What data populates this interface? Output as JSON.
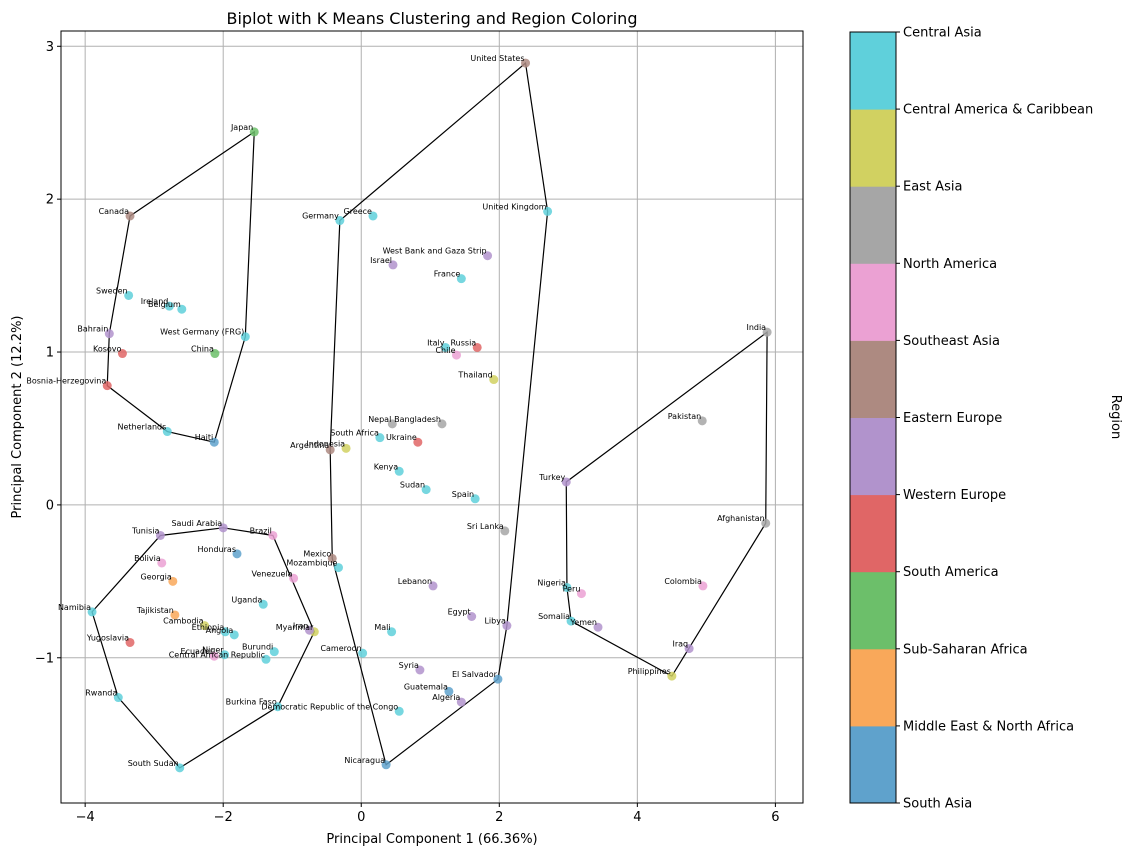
{
  "chart_data": {
    "type": "scatter",
    "title": "Biplot with K Means Clustering and Region Coloring",
    "xlabel": "Principal Component 1 (66.36%)",
    "ylabel": "Principal Component 2 (12.2%)",
    "xlim": [
      -4.35,
      6.4
    ],
    "ylim": [
      -1.95,
      3.1
    ],
    "xticks": [
      -4,
      -2,
      0,
      2,
      4,
      6
    ],
    "yticks": [
      -1,
      0,
      1,
      2,
      3
    ],
    "xtick_labels": [
      "−4",
      "−2",
      "0",
      "2",
      "4",
      "6"
    ],
    "ytick_labels": [
      "−1",
      "0",
      "1",
      "2",
      "3"
    ],
    "grid": true,
    "colorbar": {
      "label": "Region",
      "ticks": [
        "Central Asia",
        "Central America & Caribbean",
        "East Asia",
        "North America",
        "Southeast Asia",
        "Eastern Europe",
        "Western Europe",
        "South America",
        "Sub-Saharan Africa",
        "Middle East & North Africa",
        "South Asia"
      ],
      "colors": [
        "#5fa2cc",
        "#f9a85a",
        "#6cbf6a",
        "#e06666",
        "#b193cc",
        "#ad8a81",
        "#eba1d3",
        "#a6a6a6",
        "#d1d161",
        "#5fd0db"
      ]
    },
    "points": [
      {
        "name": "United States",
        "x": 2.38,
        "y": 2.89,
        "color": "#ad8a81"
      },
      {
        "name": "Japan",
        "x": -1.55,
        "y": 2.44,
        "color": "#6cbf6a"
      },
      {
        "name": "Canada",
        "x": -3.35,
        "y": 1.89,
        "color": "#ad8a81"
      },
      {
        "name": "Germany",
        "x": -0.31,
        "y": 1.86,
        "color": "#5fd0db"
      },
      {
        "name": "Greece",
        "x": 0.17,
        "y": 1.89,
        "color": "#5fd0db"
      },
      {
        "name": "United Kingdom",
        "x": 2.7,
        "y": 1.92,
        "color": "#5fd0db"
      },
      {
        "name": "West Bank and Gaza Strip",
        "x": 1.83,
        "y": 1.63,
        "color": "#b193cc"
      },
      {
        "name": "Israel",
        "x": 0.46,
        "y": 1.57,
        "color": "#b193cc"
      },
      {
        "name": "France",
        "x": 1.45,
        "y": 1.48,
        "color": "#5fd0db"
      },
      {
        "name": "Sweden",
        "x": -3.37,
        "y": 1.37,
        "color": "#5fd0db"
      },
      {
        "name": "Ireland",
        "x": -2.78,
        "y": 1.3,
        "color": "#5fd0db"
      },
      {
        "name": "Belgium",
        "x": -2.6,
        "y": 1.28,
        "color": "#5fd0db"
      },
      {
        "name": "Bahrain",
        "x": -3.65,
        "y": 1.12,
        "color": "#b193cc"
      },
      {
        "name": "West Germany (FRG)",
        "x": -1.68,
        "y": 1.1,
        "color": "#5fd0db"
      },
      {
        "name": "India",
        "x": 5.88,
        "y": 1.13,
        "color": "#a6a6a6"
      },
      {
        "name": "Kosovo",
        "x": -3.46,
        "y": 0.99,
        "color": "#e06666"
      },
      {
        "name": "China",
        "x": -2.12,
        "y": 0.99,
        "color": "#6cbf6a"
      },
      {
        "name": "Italy",
        "x": 1.22,
        "y": 1.03,
        "color": "#5fd0db"
      },
      {
        "name": "Russia",
        "x": 1.68,
        "y": 1.03,
        "color": "#e06666"
      },
      {
        "name": "Chile",
        "x": 1.38,
        "y": 0.98,
        "color": "#eba1d3"
      },
      {
        "name": "Bosnia-Herzegovina",
        "x": -3.68,
        "y": 0.78,
        "color": "#e06666"
      },
      {
        "name": "Thailand",
        "x": 1.92,
        "y": 0.82,
        "color": "#d1d161"
      },
      {
        "name": "Pakistan",
        "x": 4.94,
        "y": 0.55,
        "color": "#a6a6a6"
      },
      {
        "name": "Nepal",
        "x": 0.45,
        "y": 0.53,
        "color": "#a6a6a6"
      },
      {
        "name": "Bangladesh",
        "x": 1.17,
        "y": 0.53,
        "color": "#a6a6a6"
      },
      {
        "name": "Netherlands",
        "x": -2.81,
        "y": 0.48,
        "color": "#5fd0db"
      },
      {
        "name": "Haiti",
        "x": -2.13,
        "y": 0.41,
        "color": "#5fa2cc"
      },
      {
        "name": "South Africa",
        "x": 0.27,
        "y": 0.44,
        "color": "#5fd0db"
      },
      {
        "name": "Ukraine",
        "x": 0.82,
        "y": 0.41,
        "color": "#e06666"
      },
      {
        "name": "Argentina",
        "x": -0.45,
        "y": 0.36,
        "color": "#ad8a81"
      },
      {
        "name": "Indonesia",
        "x": -0.22,
        "y": 0.37,
        "color": "#d1d161"
      },
      {
        "name": "Kenya",
        "x": 0.55,
        "y": 0.22,
        "color": "#5fd0db"
      },
      {
        "name": "Turkey",
        "x": 2.97,
        "y": 0.15,
        "color": "#b193cc"
      },
      {
        "name": "Sudan",
        "x": 0.94,
        "y": 0.1,
        "color": "#5fd0db"
      },
      {
        "name": "Spain",
        "x": 1.65,
        "y": 0.04,
        "color": "#5fd0db"
      },
      {
        "name": "Afghanistan",
        "x": 5.86,
        "y": -0.12,
        "color": "#a6a6a6"
      },
      {
        "name": "Sri Lanka",
        "x": 2.08,
        "y": -0.17,
        "color": "#a6a6a6"
      },
      {
        "name": "Saudi Arabia",
        "x": -2.0,
        "y": -0.15,
        "color": "#b193cc"
      },
      {
        "name": "Tunisia",
        "x": -2.91,
        "y": -0.2,
        "color": "#b193cc"
      },
      {
        "name": "Brazil",
        "x": -1.28,
        "y": -0.2,
        "color": "#eba1d3"
      },
      {
        "name": "Honduras",
        "x": -1.8,
        "y": -0.32,
        "color": "#5fa2cc"
      },
      {
        "name": "Bolivia",
        "x": -2.89,
        "y": -0.38,
        "color": "#eba1d3"
      },
      {
        "name": "Mexico",
        "x": -0.42,
        "y": -0.35,
        "color": "#ad8a81"
      },
      {
        "name": "Mozambique",
        "x": -0.33,
        "y": -0.41,
        "color": "#5fd0db"
      },
      {
        "name": "Venezuela",
        "x": -0.98,
        "y": -0.48,
        "color": "#eba1d3"
      },
      {
        "name": "Georgia",
        "x": -2.73,
        "y": -0.5,
        "color": "#f9a85a"
      },
      {
        "name": "Lebanon",
        "x": 1.04,
        "y": -0.53,
        "color": "#b193cc"
      },
      {
        "name": "Nigeria",
        "x": 2.98,
        "y": -0.54,
        "color": "#5fd0db"
      },
      {
        "name": "Peru",
        "x": 3.19,
        "y": -0.58,
        "color": "#eba1d3"
      },
      {
        "name": "Colombia",
        "x": 4.95,
        "y": -0.53,
        "color": "#eba1d3"
      },
      {
        "name": "Namibia",
        "x": -3.9,
        "y": -0.7,
        "color": "#5fd0db"
      },
      {
        "name": "Tajikistan",
        "x": -2.7,
        "y": -0.72,
        "color": "#f9a85a"
      },
      {
        "name": "Uganda",
        "x": -1.42,
        "y": -0.65,
        "color": "#5fd0db"
      },
      {
        "name": "Egypt",
        "x": 1.6,
        "y": -0.73,
        "color": "#b193cc"
      },
      {
        "name": "Somalia",
        "x": 3.04,
        "y": -0.76,
        "color": "#5fd0db"
      },
      {
        "name": "Libya",
        "x": 2.11,
        "y": -0.79,
        "color": "#b193cc"
      },
      {
        "name": "Yemen",
        "x": 3.43,
        "y": -0.8,
        "color": "#b193cc"
      },
      {
        "name": "Cambodia",
        "x": -2.27,
        "y": -0.79,
        "color": "#d1d161"
      },
      {
        "name": "Ethiopia",
        "x": -1.97,
        "y": -0.83,
        "color": "#5fd0db"
      },
      {
        "name": "Angola",
        "x": -1.84,
        "y": -0.85,
        "color": "#5fd0db"
      },
      {
        "name": "Myanmar",
        "x": -0.68,
        "y": -0.83,
        "color": "#d1d161"
      },
      {
        "name": "Iran",
        "x": -0.75,
        "y": -0.82,
        "color": "#b193cc"
      },
      {
        "name": "Mali",
        "x": 0.44,
        "y": -0.83,
        "color": "#5fd0db"
      },
      {
        "name": "Yugoslavia",
        "x": -3.35,
        "y": -0.9,
        "color": "#e06666"
      },
      {
        "name": "Iraq",
        "x": 4.75,
        "y": -0.94,
        "color": "#b193cc"
      },
      {
        "name": "Burundi",
        "x": -1.26,
        "y": -0.96,
        "color": "#5fd0db"
      },
      {
        "name": "Cameroon",
        "x": 0.02,
        "y": -0.97,
        "color": "#5fd0db"
      },
      {
        "name": "Niger",
        "x": -1.98,
        "y": -0.98,
        "color": "#5fd0db"
      },
      {
        "name": "Ecuador",
        "x": -2.13,
        "y": -0.99,
        "color": "#eba1d3"
      },
      {
        "name": "Central African Republic",
        "x": -1.38,
        "y": -1.01,
        "color": "#5fd0db"
      },
      {
        "name": "Syria",
        "x": 0.85,
        "y": -1.08,
        "color": "#b193cc"
      },
      {
        "name": "El Salvador",
        "x": 1.98,
        "y": -1.14,
        "color": "#5fa2cc"
      },
      {
        "name": "Philippines",
        "x": 4.5,
        "y": -1.12,
        "color": "#d1d161"
      },
      {
        "name": "Guatemala",
        "x": 1.27,
        "y": -1.22,
        "color": "#5fa2cc"
      },
      {
        "name": "Rwanda",
        "x": -3.52,
        "y": -1.26,
        "color": "#5fd0db"
      },
      {
        "name": "Algeria",
        "x": 1.45,
        "y": -1.29,
        "color": "#b193cc"
      },
      {
        "name": "Burkina Faso",
        "x": -1.21,
        "y": -1.32,
        "color": "#5fd0db"
      },
      {
        "name": "Democratic Republic of the Congo",
        "x": 0.55,
        "y": -1.35,
        "color": "#5fd0db"
      },
      {
        "name": "Nicaragua",
        "x": 0.36,
        "y": -1.7,
        "color": "#5fa2cc"
      },
      {
        "name": "South Sudan",
        "x": -2.63,
        "y": -1.72,
        "color": "#5fd0db"
      }
    ],
    "hulls": [
      [
        [
          -1.55,
          2.44
        ],
        [
          -3.35,
          1.89
        ],
        [
          -3.65,
          1.12
        ],
        [
          -3.68,
          0.78
        ],
        [
          -2.81,
          0.48
        ],
        [
          -2.13,
          0.41
        ],
        [
          -1.68,
          1.1
        ]
      ],
      [
        [
          2.38,
          2.89
        ],
        [
          -0.31,
          1.86
        ],
        [
          -0.45,
          0.36
        ],
        [
          -0.42,
          -0.35
        ],
        [
          0.36,
          -1.7
        ],
        [
          1.98,
          -1.14
        ],
        [
          2.11,
          -0.79
        ],
        [
          2.7,
          1.92
        ]
      ],
      [
        [
          5.88,
          1.13
        ],
        [
          2.97,
          0.15
        ],
        [
          2.98,
          -0.54
        ],
        [
          3.04,
          -0.76
        ],
        [
          4.5,
          -1.12
        ],
        [
          5.86,
          -0.12
        ]
      ],
      [
        [
          -2.0,
          -0.15
        ],
        [
          -2.91,
          -0.2
        ],
        [
          -3.9,
          -0.7
        ],
        [
          -3.52,
          -1.26
        ],
        [
          -2.63,
          -1.72
        ],
        [
          -1.21,
          -1.32
        ],
        [
          -0.68,
          -0.83
        ],
        [
          -1.28,
          -0.2
        ]
      ]
    ]
  }
}
